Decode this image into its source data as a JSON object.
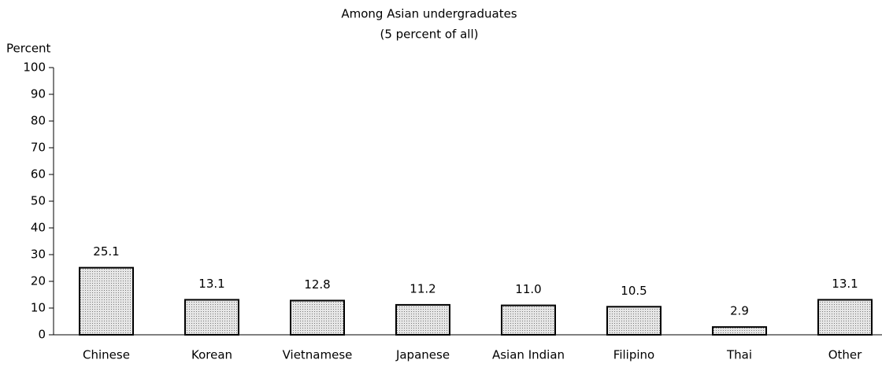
{
  "chart_data": {
    "type": "bar",
    "title": "Among Asian undergraduates",
    "subtitle": "(5 percent of all)",
    "y_label": "Percent",
    "categories": [
      "Chinese",
      "Korean",
      "Vietnamese",
      "Japanese",
      "Asian Indian",
      "Filipino",
      "Thai",
      "Other"
    ],
    "values": [
      25.1,
      13.1,
      12.8,
      11.2,
      11.0,
      10.5,
      2.9,
      13.1
    ],
    "value_labels": [
      "25.1",
      "13.1",
      "12.8",
      "11.2",
      "11.0",
      "10.5",
      "2.9",
      "13.1"
    ],
    "color": "#c8c8c8",
    "ylim": [
      0,
      100
    ],
    "yticks": [
      0,
      10,
      20,
      30,
      40,
      50,
      60,
      70,
      80,
      90,
      100
    ],
    "grid": false
  }
}
